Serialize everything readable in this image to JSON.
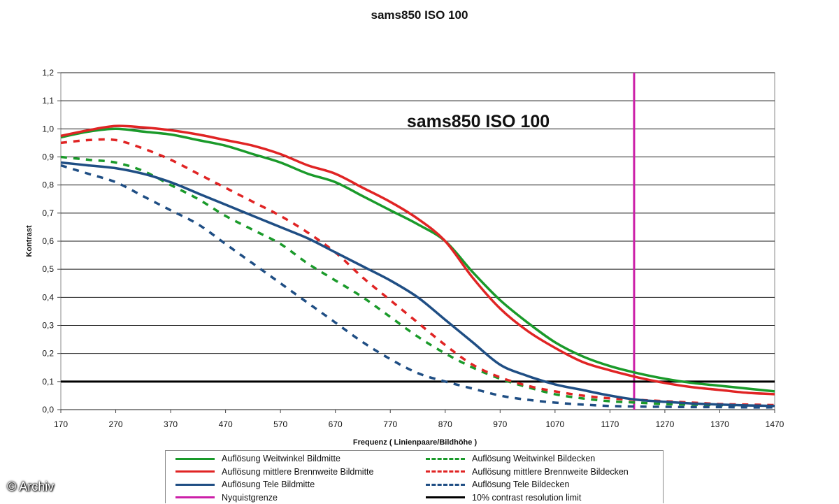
{
  "title": "sams850 ISO 100",
  "watermark": "© Archiv",
  "chart_data": {
    "type": "line",
    "title": "sams850 ISO 100",
    "inner_title": "sams850 ISO 100",
    "xlabel": "Frequenz ( Linienpaare/Bildhöhe )",
    "ylabel": "Kontrast",
    "xlim": [
      170,
      1470
    ],
    "ylim": [
      0,
      1.2
    ],
    "xticks": [
      "170",
      "270",
      "370",
      "470",
      "570",
      "670",
      "770",
      "870",
      "970",
      "1070",
      "1170",
      "1270",
      "1370",
      "1470"
    ],
    "yticks": [
      "0,0",
      "0,1",
      "0,2",
      "0,3",
      "0,4",
      "0,5",
      "0,6",
      "0,7",
      "0,8",
      "0,9",
      "1,0",
      "1,1",
      "1,2"
    ],
    "grid": "horizontal",
    "legend_position": "bottom",
    "series": [
      {
        "name": "Auflösung Weitwinkel Bildmitte",
        "color": "#1a9a2a",
        "dash": "solid",
        "x": [
          170,
          220,
          270,
          320,
          370,
          420,
          470,
          520,
          570,
          620,
          670,
          720,
          770,
          820,
          870,
          920,
          970,
          1020,
          1070,
          1120,
          1170,
          1220,
          1270,
          1320,
          1370,
          1420,
          1470
        ],
        "y": [
          0.97,
          0.99,
          1.0,
          0.99,
          0.98,
          0.96,
          0.94,
          0.91,
          0.88,
          0.84,
          0.81,
          0.76,
          0.71,
          0.66,
          0.6,
          0.49,
          0.39,
          0.31,
          0.24,
          0.19,
          0.155,
          0.13,
          0.11,
          0.095,
          0.085,
          0.075,
          0.065
        ]
      },
      {
        "name": "Auflösung mittlere Brennweite Bildmitte",
        "color": "#e02424",
        "dash": "solid",
        "x": [
          170,
          220,
          270,
          320,
          370,
          420,
          470,
          520,
          570,
          620,
          670,
          720,
          770,
          820,
          870,
          920,
          970,
          1020,
          1070,
          1120,
          1170,
          1220,
          1270,
          1320,
          1370,
          1420,
          1470
        ],
        "y": [
          0.975,
          0.995,
          1.01,
          1.005,
          0.995,
          0.98,
          0.96,
          0.94,
          0.91,
          0.87,
          0.84,
          0.79,
          0.74,
          0.68,
          0.6,
          0.47,
          0.36,
          0.28,
          0.22,
          0.17,
          0.14,
          0.115,
          0.095,
          0.08,
          0.07,
          0.06,
          0.055
        ]
      },
      {
        "name": "Auflösung Tele Bildmitte",
        "color": "#1f4e84",
        "dash": "solid",
        "x": [
          170,
          220,
          270,
          320,
          370,
          420,
          470,
          520,
          570,
          620,
          670,
          720,
          770,
          820,
          870,
          920,
          970,
          1020,
          1070,
          1120,
          1170,
          1220,
          1270,
          1320,
          1370,
          1420,
          1470
        ],
        "y": [
          0.88,
          0.87,
          0.86,
          0.84,
          0.81,
          0.77,
          0.73,
          0.69,
          0.65,
          0.61,
          0.56,
          0.51,
          0.46,
          0.4,
          0.32,
          0.24,
          0.16,
          0.12,
          0.09,
          0.07,
          0.05,
          0.035,
          0.028,
          0.022,
          0.018,
          0.015,
          0.013
        ]
      },
      {
        "name": "Auflösung Weitwinkel Bildecken",
        "color": "#1a9a2a",
        "dash": "dashed",
        "x": [
          170,
          220,
          270,
          320,
          370,
          420,
          470,
          520,
          570,
          620,
          670,
          720,
          770,
          820,
          870,
          920,
          970,
          1020,
          1070,
          1120,
          1170,
          1220,
          1270,
          1320,
          1370,
          1420,
          1470
        ],
        "y": [
          0.9,
          0.89,
          0.88,
          0.85,
          0.8,
          0.75,
          0.69,
          0.64,
          0.59,
          0.52,
          0.46,
          0.4,
          0.33,
          0.26,
          0.2,
          0.15,
          0.11,
          0.08,
          0.055,
          0.04,
          0.03,
          0.025,
          0.02,
          0.018,
          0.016,
          0.015,
          0.014
        ]
      },
      {
        "name": "Auflösung mittlere Brennweite Bildecken",
        "color": "#e02424",
        "dash": "dashed",
        "x": [
          170,
          220,
          270,
          320,
          370,
          420,
          470,
          520,
          570,
          620,
          670,
          720,
          770,
          820,
          870,
          920,
          970,
          1020,
          1070,
          1120,
          1170,
          1220,
          1270,
          1320,
          1370,
          1420,
          1470
        ],
        "y": [
          0.95,
          0.96,
          0.96,
          0.93,
          0.89,
          0.84,
          0.79,
          0.74,
          0.69,
          0.63,
          0.56,
          0.47,
          0.39,
          0.31,
          0.23,
          0.16,
          0.115,
          0.085,
          0.065,
          0.05,
          0.04,
          0.035,
          0.03,
          0.025,
          0.02,
          0.018,
          0.016
        ]
      },
      {
        "name": "Auflösung Tele Bildecken",
        "color": "#1f4e84",
        "dash": "dashed",
        "x": [
          170,
          220,
          270,
          320,
          370,
          420,
          470,
          520,
          570,
          620,
          670,
          720,
          770,
          820,
          870,
          920,
          970,
          1020,
          1070,
          1120,
          1170,
          1220,
          1270,
          1320,
          1370,
          1420,
          1470
        ],
        "y": [
          0.87,
          0.84,
          0.81,
          0.76,
          0.71,
          0.66,
          0.59,
          0.52,
          0.45,
          0.38,
          0.31,
          0.24,
          0.18,
          0.13,
          0.1,
          0.075,
          0.05,
          0.035,
          0.025,
          0.018,
          0.013,
          0.011,
          0.01,
          0.009,
          0.009,
          0.008,
          0.008
        ]
      }
    ],
    "reference_lines": [
      {
        "name": "Nyquistgrenze",
        "color": "#cc1fa8",
        "orientation": "vertical",
        "value": 1214
      },
      {
        "name": "10% contrast resolution limit",
        "color": "#000000",
        "orientation": "horizontal",
        "value": 0.1
      }
    ]
  },
  "legend": {
    "items": [
      {
        "label": "Auflösung Weitwinkel Bildmitte",
        "color": "#1a9a2a",
        "dash": "solid"
      },
      {
        "label": "Auflösung Weitwinkel Bildecken",
        "color": "#1a9a2a",
        "dash": "dashed"
      },
      {
        "label": "Auflösung mittlere Brennweite Bildmitte",
        "color": "#e02424",
        "dash": "solid"
      },
      {
        "label": "Auflösung mittlere Brennweite Bildecken",
        "color": "#e02424",
        "dash": "dashed"
      },
      {
        "label": "Auflösung Tele Bildmitte",
        "color": "#1f4e84",
        "dash": "solid"
      },
      {
        "label": "Auflösung Tele Bildecken",
        "color": "#1f4e84",
        "dash": "dashed"
      },
      {
        "label": "Nyquistgrenze",
        "color": "#cc1fa8",
        "dash": "solid"
      },
      {
        "label": "10% contrast resolution limit",
        "color": "#000000",
        "dash": "solid"
      }
    ]
  }
}
